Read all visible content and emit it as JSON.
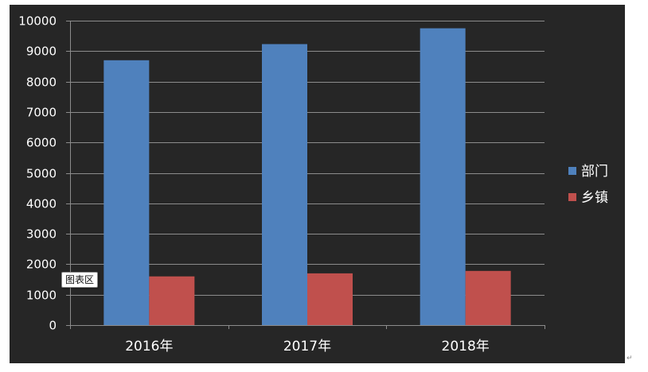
{
  "chart_data": {
    "type": "bar",
    "categories": [
      "2016年",
      "2017年",
      "2018年"
    ],
    "series": [
      {
        "name": "部门",
        "color": "#4f81bd",
        "values": [
          8700,
          9230,
          9750
        ]
      },
      {
        "name": "乡镇",
        "color": "#c0504d",
        "values": [
          1600,
          1700,
          1780
        ]
      }
    ],
    "ylim": [
      0,
      10000
    ],
    "yticks": [
      0,
      1000,
      2000,
      3000,
      4000,
      5000,
      6000,
      7000,
      8000,
      9000,
      10000
    ],
    "grid": true,
    "legend_position": "right"
  },
  "ui": {
    "tooltip_text": "图表区",
    "paragraph_mark": "↵"
  },
  "colors": {
    "background": "#262626",
    "gridline": "#8c8c8c",
    "text": "#ffffff"
  }
}
